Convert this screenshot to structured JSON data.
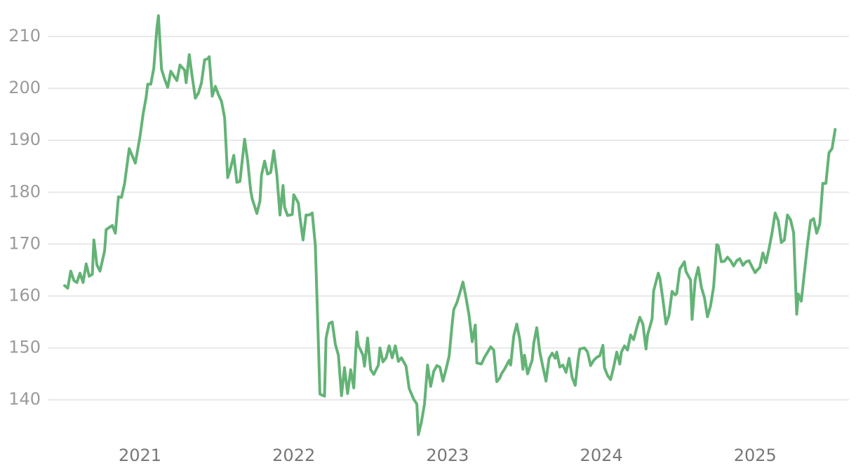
{
  "chart_data": {
    "type": "line",
    "x": [
      2020.51,
      2020.53,
      2020.55,
      2020.57,
      2020.59,
      2020.61,
      2020.63,
      2020.65,
      2020.67,
      2020.69,
      2020.7,
      2020.72,
      2020.74,
      2020.77,
      2020.78,
      2020.82,
      2020.84,
      2020.86,
      2020.88,
      2020.9,
      2020.93,
      2020.97,
      2021.0,
      2021.02,
      2021.04,
      2021.05,
      2021.07,
      2021.09,
      2021.11,
      2021.12,
      2021.14,
      2021.16,
      2021.18,
      2021.2,
      2021.24,
      2021.26,
      2021.29,
      2021.3,
      2021.32,
      2021.34,
      2021.36,
      2021.38,
      2021.4,
      2021.42,
      2021.44,
      2021.45,
      2021.47,
      2021.49,
      2021.51,
      2021.53,
      2021.55,
      2021.57,
      2021.59,
      2021.61,
      2021.63,
      2021.65,
      2021.68,
      2021.7,
      2021.72,
      2021.73,
      2021.76,
      2021.78,
      2021.79,
      2021.81,
      2021.83,
      2021.85,
      2021.87,
      2021.89,
      2021.91,
      2021.93,
      2021.94,
      2021.96,
      2021.99,
      2022.0,
      2022.03,
      2022.04,
      2022.06,
      2022.08,
      2022.1,
      2022.12,
      2022.14,
      2022.15,
      2022.17,
      2022.2,
      2022.21,
      2022.23,
      2022.25,
      2022.27,
      2022.29,
      2022.31,
      2022.33,
      2022.35,
      2022.37,
      2022.39,
      2022.41,
      2022.42,
      2022.45,
      2022.46,
      2022.48,
      2022.5,
      2022.52,
      2022.55,
      2022.56,
      2022.58,
      2022.6,
      2022.62,
      2022.64,
      2022.66,
      2022.68,
      2022.7,
      2022.73,
      2022.75,
      2022.78,
      2022.8,
      2022.81,
      2022.83,
      2022.85,
      2022.87,
      2022.89,
      2022.91,
      2022.93,
      2022.95,
      2022.97,
      2022.99,
      2023.01,
      2023.03,
      2023.04,
      2023.06,
      2023.08,
      2023.1,
      2023.12,
      2023.14,
      2023.16,
      2023.18,
      2023.19,
      2023.22,
      2023.24,
      2023.26,
      2023.28,
      2023.3,
      2023.32,
      2023.34,
      2023.35,
      2023.37,
      2023.4,
      2023.41,
      2023.43,
      2023.45,
      2023.47,
      2023.49,
      2023.5,
      2023.52,
      2023.55,
      2023.56,
      2023.58,
      2023.6,
      2023.62,
      2023.64,
      2023.66,
      2023.68,
      2023.7,
      2023.71,
      2023.73,
      2023.75,
      2023.77,
      2023.79,
      2023.81,
      2023.83,
      2023.85,
      2023.86,
      2023.89,
      2023.91,
      2023.93,
      2023.95,
      2023.97,
      2023.99,
      2024.01,
      2024.02,
      2024.04,
      2024.06,
      2024.08,
      2024.1,
      2024.12,
      2024.13,
      2024.15,
      2024.17,
      2024.19,
      2024.21,
      2024.23,
      2024.25,
      2024.27,
      2024.29,
      2024.3,
      2024.33,
      2024.34,
      2024.37,
      2024.38,
      2024.4,
      2024.42,
      2024.44,
      2024.46,
      2024.48,
      2024.49,
      2024.51,
      2024.54,
      2024.55,
      2024.58,
      2024.59,
      2024.61,
      2024.63,
      2024.65,
      2024.67,
      2024.69,
      2024.71,
      2024.73,
      2024.75,
      2024.76,
      2024.78,
      2024.8,
      2024.82,
      2024.84,
      2024.86,
      2024.88,
      2024.9,
      2024.92,
      2024.94,
      2024.96,
      2024.98,
      2025.0,
      2025.01,
      2025.03,
      2025.05,
      2025.07,
      2025.09,
      2025.11,
      2025.13,
      2025.15,
      2025.17,
      2025.19,
      2025.21,
      2025.23,
      2025.25,
      2025.27,
      2025.28,
      2025.3,
      2025.32,
      2025.34,
      2025.36,
      2025.38,
      2025.4,
      2025.42,
      2025.44,
      2025.46,
      2025.48,
      2025.5,
      2025.52
    ],
    "series": [
      {
        "color": "#63b376",
        "values": [
          162,
          161.5,
          164.8,
          163,
          162.6,
          164.4,
          162.6,
          166.2,
          163.8,
          164.2,
          170.8,
          166,
          164.8,
          168.7,
          172.8,
          173.6,
          172.1,
          179.1,
          179,
          181.7,
          188.4,
          185.6,
          190.7,
          195,
          198.3,
          200.8,
          200.8,
          203.9,
          211.6,
          214,
          203.7,
          201.8,
          200.2,
          203.3,
          201.5,
          204.5,
          203.5,
          201.1,
          206.5,
          202.2,
          198.1,
          199.1,
          201.1,
          205.5,
          205.7,
          206.1,
          198.5,
          200.4,
          198.8,
          197.5,
          194.4,
          182.8,
          184.7,
          187.1,
          181.9,
          182.1,
          190.2,
          186,
          180.3,
          178.7,
          175.9,
          178.3,
          183.3,
          186,
          183.5,
          183.8,
          188,
          183.3,
          175.6,
          181.3,
          177.1,
          175.5,
          175.7,
          179.5,
          177.9,
          175.2,
          170.8,
          175.6,
          175.6,
          176,
          169.8,
          160.4,
          141.1,
          140.7,
          151.9,
          154.7,
          155,
          150.7,
          148.6,
          140.8,
          146.2,
          141.2,
          145.8,
          142.3,
          153.1,
          150.5,
          148.6,
          146.5,
          151.9,
          145.8,
          144.9,
          146.7,
          150,
          147.3,
          148.1,
          150.4,
          148.1,
          150.4,
          147.4,
          148.1,
          146.5,
          142.2,
          140.1,
          139.2,
          133.3,
          135.7,
          139.2,
          146.7,
          142.6,
          145.5,
          146.6,
          146.3,
          143.6,
          145.9,
          148.4,
          154.7,
          157.4,
          158.7,
          160.6,
          162.7,
          159.7,
          156.2,
          151.2,
          154.4,
          147.1,
          146.9,
          148.2,
          149.2,
          150.2,
          149.6,
          143.5,
          144.2,
          145,
          145.9,
          147.6,
          146.7,
          152.3,
          154.6,
          151.6,
          145.9,
          148.6,
          145,
          147.7,
          150.9,
          153.9,
          149.2,
          146.3,
          143.6,
          148,
          149,
          148,
          149.2,
          146.3,
          146.7,
          145.3,
          148,
          144.3,
          142.8,
          148,
          149.8,
          150,
          149.2,
          146.6,
          147.6,
          148.2,
          148.5,
          150.5,
          146.2,
          144.7,
          143.9,
          146.3,
          149.2,
          146.9,
          149.2,
          150.4,
          149.6,
          152.5,
          151.6,
          153.9,
          155.9,
          154.6,
          149.8,
          152.5,
          155.6,
          161,
          164.4,
          163.5,
          159.3,
          154.6,
          156.3,
          160.9,
          160.2,
          160.5,
          165.2,
          166.6,
          164.7,
          163.1,
          155.5,
          163.1,
          165.5,
          161.7,
          159.7,
          156,
          158.1,
          161.8,
          169.9,
          169.7,
          166.6,
          166.7,
          167.5,
          166.8,
          165.8,
          166.8,
          167.2,
          165.9,
          166.6,
          166.8,
          165.6,
          164.5,
          164.9,
          165.5,
          168.3,
          166.4,
          169.1,
          172.2,
          176,
          174.5,
          170.3,
          170.8,
          175.6,
          174.7,
          172.2,
          156.5,
          160.4,
          159,
          164.4,
          169.8,
          174.5,
          174.9,
          172.1,
          173.9,
          181.7,
          181.7,
          187.6,
          188.4,
          192.1
        ]
      }
    ],
    "xlim": [
      2020.4,
      2025.61
    ],
    "xticks": [
      2021,
      2022,
      2023,
      2024,
      2025
    ],
    "ylim": [
      132,
      215
    ],
    "yticks": [
      140,
      150,
      160,
      170,
      180,
      190,
      200,
      210
    ],
    "grid": true
  }
}
